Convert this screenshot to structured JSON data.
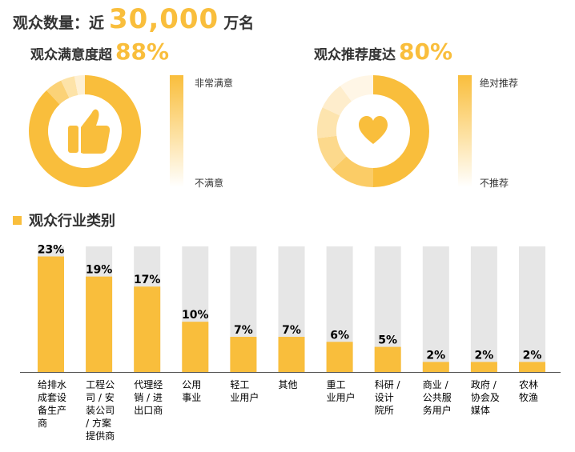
{
  "header": {
    "label": "观众数量：近",
    "number": "30,000",
    "unit": "万名"
  },
  "satisfaction": {
    "label": "观众满意度超",
    "value": "88%",
    "scale_top": "非常满意",
    "scale_bottom": "不满意",
    "icon": "thumbs-up-icon",
    "segments": [
      88,
      5,
      4,
      3
    ],
    "segment_colors": [
      "#F9BE3C",
      "#FBD277",
      "#FDE3A8",
      "#FEF0D3"
    ]
  },
  "recommend": {
    "label": "观众推荐度达",
    "value": "80%",
    "scale_top": "绝对推荐",
    "scale_bottom": "不推荐",
    "icon": "heart-icon",
    "segments": [
      50,
      13,
      10,
      9,
      8,
      10
    ],
    "segment_colors": [
      "#F9BE3C",
      "#FBCC66",
      "#FCD98C",
      "#FDE4AE",
      "#FEEDCC",
      "#FFF6E6"
    ]
  },
  "industry": {
    "title": "观众行业类别"
  },
  "colors": {
    "accent": "#F9BE3C",
    "track": "#E6E6E6",
    "text": "#333333"
  },
  "chart_data": {
    "type": "bar",
    "title": "观众行业类别",
    "categories": [
      "给排水成套设备生产商",
      "工程公司 / 安装公司 / 方案提供商",
      "代理经销 / 进出口商",
      "公用事业",
      "轻工业用户",
      "其他",
      "重工业用户",
      "科研 / 设计院所",
      "商业 / 公共服务用户",
      "政府 / 协会及媒体",
      "农林牧渔"
    ],
    "category_lines": [
      [
        "给排水",
        "成套设",
        "备生产",
        "商"
      ],
      [
        "工程公",
        "司 / 安",
        "装公司",
        "/ 方案",
        "提供商"
      ],
      [
        "代理经",
        "销 / 进",
        "出口商"
      ],
      [
        "公用",
        "事业"
      ],
      [
        "轻工",
        "业用户"
      ],
      [
        "其他"
      ],
      [
        "重工",
        "业用户"
      ],
      [
        "科研 /",
        "设计",
        "院所"
      ],
      [
        "商业 /",
        "公共服",
        "务用户"
      ],
      [
        "政府 /",
        "协会及",
        "媒体"
      ],
      [
        "农林",
        "牧渔"
      ]
    ],
    "values": [
      23,
      19,
      17,
      10,
      7,
      7,
      6,
      5,
      2,
      2,
      2
    ],
    "value_labels": [
      "23%",
      "19%",
      "17%",
      "10%",
      "7%",
      "7%",
      "6%",
      "5%",
      "2%",
      "2%",
      "2%"
    ],
    "ylim": [
      0,
      25
    ],
    "xlabel": "",
    "ylabel": "",
    "grid": false,
    "legend": "none",
    "background_track": true
  }
}
